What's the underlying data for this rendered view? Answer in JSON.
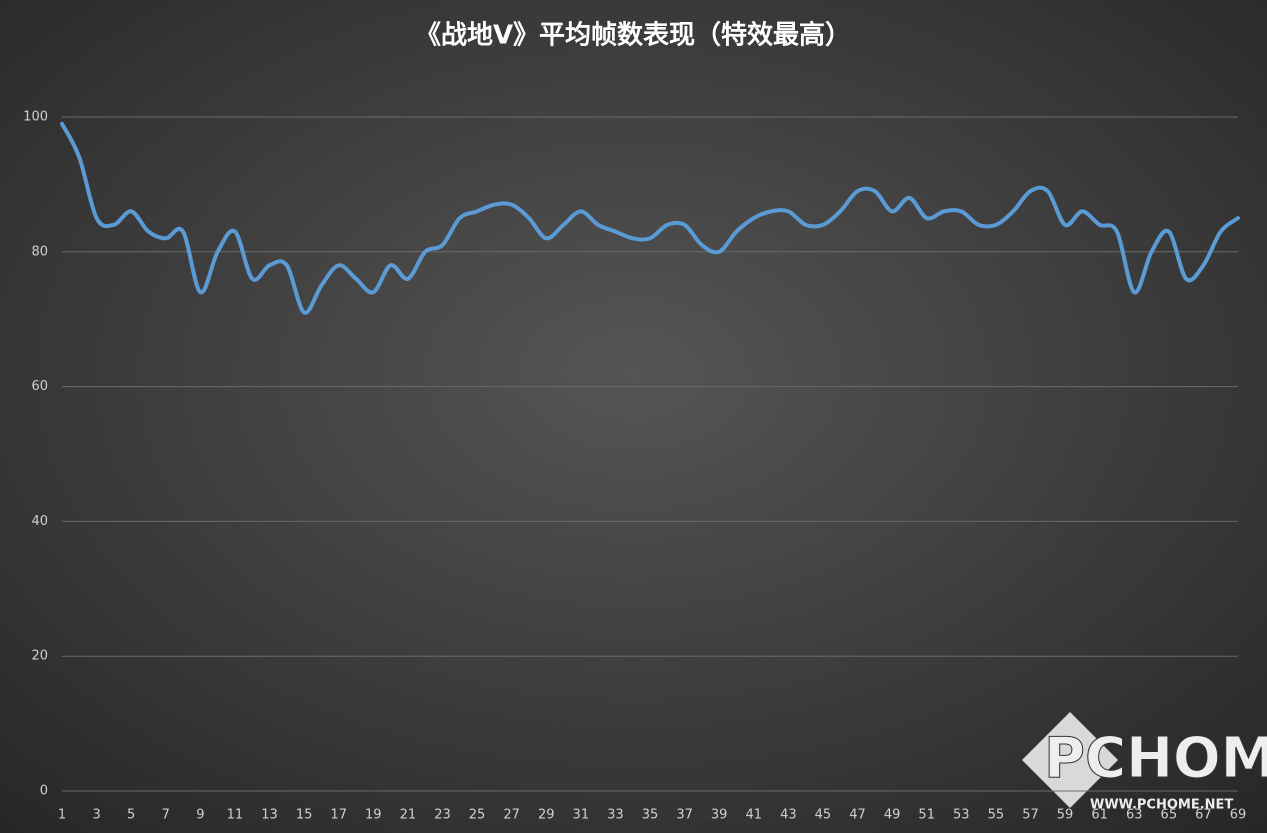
{
  "chart_data": {
    "type": "line",
    "title": "《战地V》平均帧数表现（特效最高）",
    "categories": [
      "1",
      null,
      "3",
      null,
      "5",
      null,
      "7",
      null,
      "9",
      null,
      "11",
      null,
      "13",
      null,
      "15",
      null,
      "17",
      null,
      "19",
      null,
      "21",
      null,
      "23",
      null,
      "25",
      null,
      "27",
      null,
      "29",
      null,
      "31",
      null,
      "33",
      null,
      "35",
      null,
      "37",
      null,
      "39",
      null,
      "41",
      null,
      "43",
      null,
      "45",
      null,
      "47",
      null,
      "49",
      null,
      "51",
      null,
      "53",
      null,
      "55",
      null,
      "57",
      null,
      "59",
      null,
      "61",
      null,
      "63",
      null,
      "65",
      null,
      "67",
      null,
      "69"
    ],
    "values": [
      99,
      94,
      85,
      84,
      86,
      83,
      82,
      83,
      74,
      80,
      83,
      76,
      78,
      78,
      71,
      75,
      78,
      76,
      74,
      78,
      76,
      80,
      81,
      85,
      86,
      87,
      87,
      85,
      82,
      84,
      86,
      84,
      83,
      82,
      82,
      84,
      84,
      81,
      80,
      83,
      85,
      86,
      86,
      84,
      84,
      86,
      89,
      89,
      86,
      88,
      85,
      86,
      86,
      84,
      84,
      86,
      89,
      89,
      84,
      86,
      84,
      83,
      74,
      80,
      83,
      76,
      78,
      83,
      85
    ],
    "color": "#5b9bd5",
    "ylim": [
      0,
      100
    ],
    "yticks": [
      0,
      20,
      40,
      60,
      80,
      100
    ],
    "grid": true,
    "watermark": "PCHOME",
    "watermark_url": "WWW.PCHOME.NET"
  }
}
